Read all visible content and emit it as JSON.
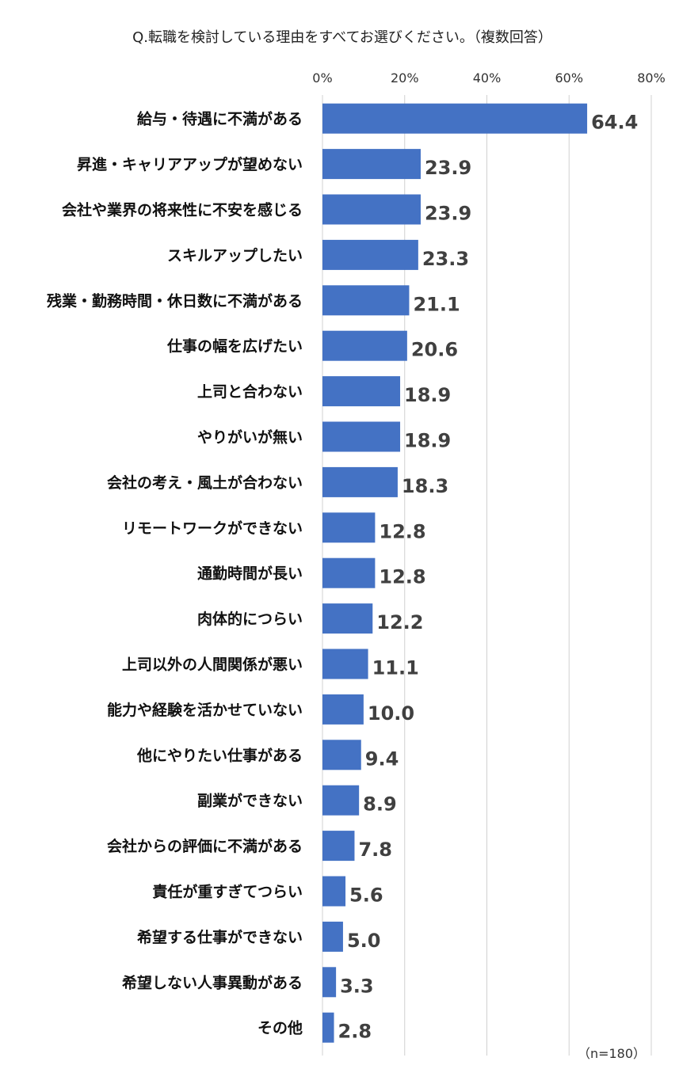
{
  "chart_data": {
    "type": "bar",
    "orientation": "horizontal",
    "title": "Q.転職を検討している理由をすべてお選びください。（複数回答）",
    "xlim": [
      0,
      80
    ],
    "x_ticks": [
      "0%",
      "20%",
      "40%",
      "60%",
      "80%"
    ],
    "x_tick_values": [
      0,
      20,
      40,
      60,
      80
    ],
    "grid": true,
    "bar_color": "#4472C4",
    "categories": [
      "給与・待遇に不満がある",
      "昇進・キャリアアップが望めない",
      "会社や業界の将来性に不安を感じる",
      "スキルアップしたい",
      "残業・勤務時間・休日数に不満がある",
      "仕事の幅を広げたい",
      "上司と合わない",
      "やりがいが無い",
      "会社の考え・風土が合わない",
      "リモートワークができない",
      "通勤時間が長い",
      "肉体的につらい",
      "上司以外の人間関係が悪い",
      "能力や経験を活かせていない",
      "他にやりたい仕事がある",
      "副業ができない",
      "会社からの評価に不満がある",
      "責任が重すぎてつらい",
      "希望する仕事ができない",
      "希望しない人事異動がある",
      "その他"
    ],
    "values": [
      64.4,
      23.9,
      23.9,
      23.3,
      21.1,
      20.6,
      18.9,
      18.9,
      18.3,
      12.8,
      12.8,
      12.2,
      11.1,
      10.0,
      9.4,
      8.9,
      7.8,
      5.6,
      5.0,
      3.3,
      2.8
    ],
    "value_labels": [
      "64.4",
      "23.9",
      "23.9",
      "23.3",
      "21.1",
      "20.6",
      "18.9",
      "18.9",
      "18.3",
      "12.8",
      "12.8",
      "12.2",
      "11.1",
      "10.0",
      "9.4",
      "8.9",
      "7.8",
      "5.6",
      "5.0",
      "3.3",
      "2.8"
    ],
    "note": "（n=180）"
  }
}
